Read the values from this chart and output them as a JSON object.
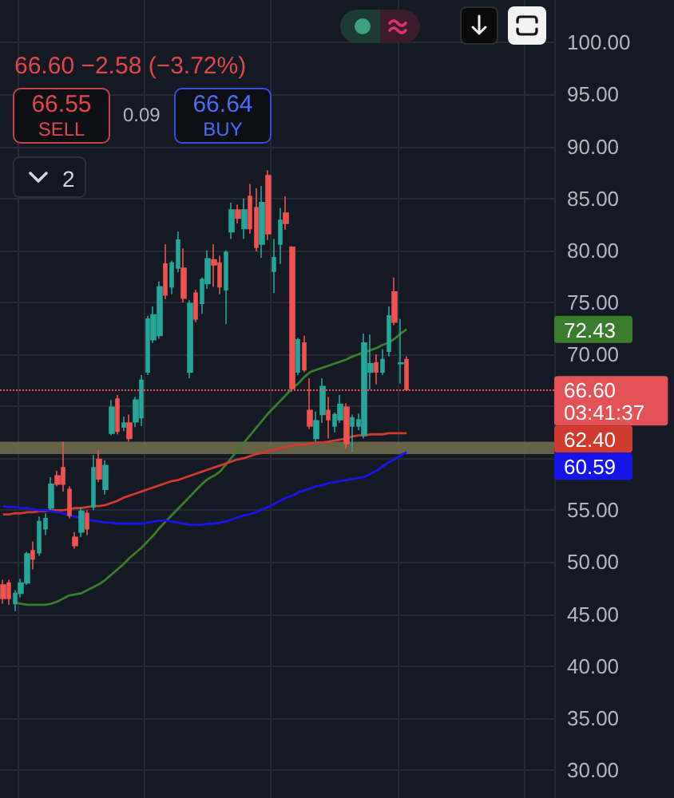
{
  "chart_data": {
    "type": "candlestick",
    "subtitle": "66.60 −2.58 (−3.72%)",
    "annotations": [
      "66.55",
      "SELL",
      "0.09",
      "66.64",
      "BUY",
      "2",
      "72.43",
      "62.40",
      "60.59"
    ],
    "categories": [
      null,
      null,
      null,
      null,
      null,
      null,
      null,
      null,
      null,
      null,
      null,
      null,
      null,
      null,
      null,
      null,
      null,
      null,
      null,
      null,
      null,
      null,
      null,
      null,
      null,
      null,
      null,
      null,
      null,
      null,
      null,
      null,
      null,
      null,
      null,
      null,
      null,
      null,
      null,
      null,
      null,
      null,
      null,
      null,
      null,
      null,
      null,
      null,
      null,
      null,
      null,
      null,
      null,
      null,
      null,
      null,
      null,
      null,
      null,
      null,
      null,
      null,
      null,
      null,
      null,
      null,
      null,
      null
    ],
    "series": [
      {
        "ohlc": [
          [
            47.8,
            48.3,
            46.0,
            46.5
          ],
          [
            48.0,
            48.3,
            45.9,
            46.5
          ],
          [
            46.0,
            47.3,
            45.3,
            47.0
          ],
          [
            47.0,
            48.4,
            46.6,
            48.0
          ],
          [
            48.0,
            51.0,
            47.8,
            50.8
          ],
          [
            51.1,
            52.0,
            49.3,
            50.3
          ],
          [
            50.9,
            54.4,
            50.6,
            53.9
          ],
          [
            53.2,
            54.7,
            52.6,
            54.2
          ],
          [
            55.2,
            58.2,
            55.0,
            57.5
          ],
          [
            58.3,
            58.8,
            57.3,
            57.5
          ],
          [
            59.1,
            61.6,
            56.8,
            57.5
          ],
          [
            57.0,
            57.3,
            54.2,
            54.5
          ],
          [
            52.4,
            52.9,
            51.3,
            51.6
          ],
          [
            52.9,
            55.3,
            52.4,
            54.9
          ],
          [
            54.7,
            55.0,
            52.6,
            53.2
          ],
          [
            55.3,
            60.3,
            55.0,
            59.1
          ],
          [
            59.9,
            60.8,
            57.7,
            58.0
          ],
          [
            57.0,
            59.8,
            56.5,
            59.3
          ],
          [
            62.4,
            65.6,
            62.2,
            64.9
          ],
          [
            65.7,
            66.1,
            62.3,
            62.6
          ],
          [
            63.0,
            64.0,
            62.6,
            63.4
          ],
          [
            63.4,
            64.2,
            61.6,
            61.9
          ],
          [
            63.5,
            65.9,
            63.0,
            65.6
          ],
          [
            63.9,
            68.0,
            63.1,
            67.5
          ],
          [
            68.3,
            73.7,
            68.0,
            73.4
          ],
          [
            71.4,
            74.6,
            71.1,
            73.8
          ],
          [
            71.8,
            77.0,
            71.5,
            76.5
          ],
          [
            78.7,
            80.6,
            75.3,
            75.7
          ],
          [
            76.5,
            79.0,
            75.8,
            78.8
          ],
          [
            78.3,
            81.8,
            77.9,
            81.0
          ],
          [
            78.3,
            80.2,
            75.0,
            75.4
          ],
          [
            68.3,
            75.2,
            67.7,
            74.9
          ],
          [
            75.9,
            76.2,
            73.1,
            73.4
          ],
          [
            74.9,
            77.4,
            73.9,
            77.2
          ],
          [
            76.8,
            80.0,
            76.3,
            79.2
          ],
          [
            79.1,
            80.6,
            76.5,
            78.6
          ],
          [
            78.8,
            79.5,
            75.8,
            76.5
          ],
          [
            76.2,
            80.0,
            72.9,
            79.8
          ],
          [
            81.8,
            84.6,
            81.1,
            83.9
          ],
          [
            83.9,
            84.4,
            82.6,
            83.1
          ],
          [
            82.1,
            85.0,
            81.1,
            83.9
          ],
          [
            85.2,
            86.4,
            81.6,
            82.1
          ],
          [
            84.1,
            86.0,
            79.9,
            80.3
          ],
          [
            80.6,
            86.2,
            79.3,
            84.6
          ],
          [
            87.2,
            87.7,
            81.0,
            81.6
          ],
          [
            78.0,
            81.1,
            75.9,
            79.3
          ],
          [
            80.6,
            84.1,
            78.7,
            82.9
          ],
          [
            83.6,
            85.2,
            82.0,
            82.6
          ],
          [
            80.3,
            80.4,
            66.4,
            66.7
          ],
          [
            68.3,
            71.6,
            68.0,
            71.4
          ],
          [
            71.1,
            71.8,
            68.3,
            68.5
          ],
          [
            64.6,
            67.7,
            62.8,
            63.1
          ],
          [
            61.9,
            64.5,
            61.6,
            63.6
          ],
          [
            64.2,
            67.7,
            63.4,
            66.9
          ],
          [
            64.6,
            65.9,
            61.9,
            63.7
          ],
          [
            63.1,
            64.4,
            62.5,
            64.2
          ],
          [
            63.7,
            66.1,
            63.4,
            65.2
          ],
          [
            64.9,
            65.3,
            60.9,
            61.4
          ],
          [
            63.1,
            64.2,
            60.6,
            63.9
          ],
          [
            63.1,
            64.3,
            62.7,
            63.7
          ],
          [
            62.2,
            72.0,
            61.9,
            71.1
          ],
          [
            68.3,
            71.9,
            66.6,
            69.1
          ],
          [
            69.2,
            70.0,
            67.1,
            68.3
          ],
          [
            68.3,
            70.5,
            68.0,
            69.5
          ],
          [
            70.3,
            74.6,
            69.8,
            73.7
          ],
          [
            76.0,
            77.4,
            72.8,
            73.1
          ],
          [
            69.1,
            73.4,
            67.2,
            69.18
          ],
          [
            69.5,
            69.8,
            66.5,
            66.6
          ]
        ],
        "colors": [
          "#ef5350",
          "#ef5350",
          "#26a69a",
          "#26a69a",
          "#26a69a",
          "#ef5350",
          "#26a69a",
          "#26a69a",
          "#26a69a",
          "#ef5350",
          "#ef5350",
          "#ef5350",
          "#ef5350",
          "#26a69a",
          "#ef5350",
          "#26a69a",
          "#ef5350",
          "#26a69a",
          "#26a69a",
          "#ef5350",
          "#26a69a",
          "#ef5350",
          "#26a69a",
          "#26a69a",
          "#26a69a",
          "#26a69a",
          "#26a69a",
          "#ef5350",
          "#26a69a",
          "#26a69a",
          "#ef5350",
          "#26a69a",
          "#ef5350",
          "#26a69a",
          "#26a69a",
          "#ef5350",
          "#ef5350",
          "#26a69a",
          "#26a69a",
          "#ef5350",
          "#26a69a",
          "#ef5350",
          "#ef5350",
          "#26a69a",
          "#ef5350",
          "#26a69a",
          "#26a69a",
          "#ef5350",
          "#ef5350",
          "#26a69a",
          "#ef5350",
          "#ef5350",
          "#26a69a",
          "#26a69a",
          "#ef5350",
          "#26a69a",
          "#26a69a",
          "#ef5350",
          "#26a69a",
          "#26a69a",
          "#26a69a",
          "#26a69a",
          "#ef5350",
          "#26a69a",
          "#26a69a",
          "#ef5350",
          "#26a69a",
          "#ef5350"
        ]
      },
      {
        "type": "line",
        "color": "#3a7d2c",
        "values": [
          null,
          null,
          46.1,
          46.0,
          45.9,
          45.9,
          45.9,
          45.9,
          46.0,
          46.2,
          46.5,
          46.8,
          46.9,
          47.0,
          47.3,
          47.6,
          47.9,
          48.3,
          48.8,
          49.3,
          49.8,
          50.4,
          50.9,
          51.4,
          52.0,
          52.6,
          53.3,
          53.9,
          54.5,
          55.1,
          55.7,
          56.3,
          56.9,
          57.5,
          58.0,
          58.3,
          58.7,
          59.4,
          60.1,
          60.8,
          61.5,
          62.2,
          62.9,
          63.6,
          64.3,
          64.9,
          65.5,
          66.1,
          66.7,
          67.2,
          67.8,
          68.3,
          68.5,
          68.7,
          68.9,
          69.1,
          69.3,
          69.5,
          69.8,
          70.0,
          70.2,
          70.4,
          70.6,
          70.9,
          71.1,
          71.5,
          72.0,
          72.4
        ]
      },
      {
        "type": "line",
        "color": "#d03a2f",
        "values": [
          54.6,
          54.6,
          54.7,
          54.7,
          54.8,
          54.8,
          54.9,
          54.9,
          55.0,
          55.0,
          55.0,
          55.1,
          55.2,
          55.2,
          55.3,
          55.4,
          55.4,
          55.5,
          55.7,
          55.9,
          56.2,
          56.4,
          56.6,
          56.8,
          57.0,
          57.2,
          57.4,
          57.6,
          57.8,
          57.9,
          58.1,
          58.3,
          58.5,
          58.7,
          58.9,
          59.1,
          59.3,
          59.5,
          59.7,
          59.9,
          60.0,
          60.2,
          60.4,
          60.5,
          60.7,
          60.8,
          61.0,
          61.1,
          61.2,
          61.3,
          61.3,
          61.4,
          61.5,
          61.5,
          61.6,
          61.7,
          61.8,
          61.9,
          62.1,
          62.2,
          62.2,
          62.3,
          62.3,
          62.3,
          62.4,
          62.4,
          62.4,
          62.4
        ]
      },
      {
        "type": "line",
        "color": "#1515e8",
        "values": [
          55.4,
          55.3,
          55.3,
          55.2,
          55.2,
          55.1,
          55.0,
          55.0,
          54.9,
          54.8,
          54.7,
          54.5,
          54.4,
          54.2,
          54.1,
          54.0,
          53.9,
          53.8,
          53.8,
          53.7,
          53.7,
          53.7,
          53.7,
          53.7,
          53.8,
          53.9,
          54.0,
          54.0,
          53.9,
          53.8,
          53.7,
          53.6,
          53.6,
          53.6,
          53.7,
          53.7,
          53.8,
          53.9,
          54.1,
          54.3,
          54.5,
          54.6,
          54.8,
          55.1,
          55.3,
          55.6,
          55.9,
          56.2,
          56.4,
          56.7,
          56.9,
          57.1,
          57.3,
          57.4,
          57.6,
          57.7,
          57.8,
          57.9,
          58.0,
          58.1,
          58.2,
          58.5,
          58.8,
          59.2,
          59.6,
          59.9,
          60.3,
          60.6
        ]
      }
    ],
    "ylim": [
      27.3,
      104.1
    ],
    "yticks": [
      {
        "value": 30,
        "label": "30.00"
      },
      {
        "value": 35,
        "label": "35.00"
      },
      {
        "value": 40,
        "label": "40.00"
      },
      {
        "value": 45,
        "label": "45.00"
      },
      {
        "value": 50,
        "label": "50.00"
      },
      {
        "value": 55,
        "label": "55.00"
      },
      {
        "value": 60,
        "label": null
      },
      {
        "value": 65,
        "label": null
      },
      {
        "value": 70,
        "label": "70.00"
      },
      {
        "value": 75,
        "label": "75.00"
      },
      {
        "value": 80,
        "label": "80.00"
      },
      {
        "value": 85,
        "label": "85.00"
      },
      {
        "value": 90,
        "label": "90.00"
      },
      {
        "value": 95,
        "label": "95.00"
      },
      {
        "value": 100,
        "label": "100.00"
      }
    ],
    "grid": true,
    "tick_labels": "y",
    "ref_lines": [
      {
        "axis": "y",
        "value": 66.6,
        "label": "66.60\n03:41:37",
        "color": "#e25257",
        "line_style": "dotted"
      }
    ],
    "bands": [
      {
        "axis": "y",
        "from": 60.4,
        "to": 61.6,
        "color": "#6e6a4c"
      }
    ]
  }
}
